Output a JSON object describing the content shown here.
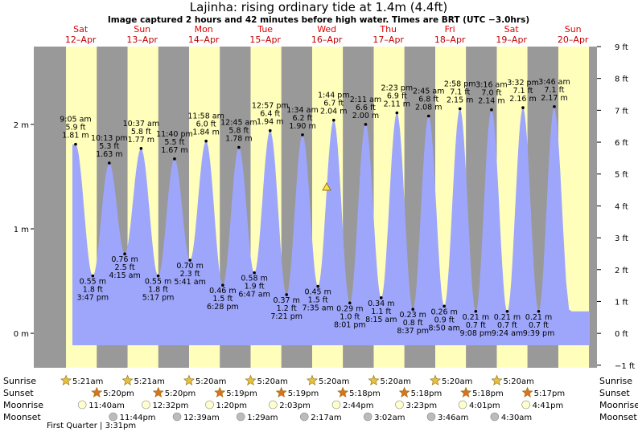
{
  "chart_data": {
    "type": "tide",
    "title": "Lajinha: rising  ordinary tide at 1.4m (4.4ft)",
    "subtitle": "Image captured 2 hours and 42 minutes before high water. Times are BRT (UTC −3.0hrs)",
    "current_m": 1.4,
    "ylim": [
      -0.33,
      2.745
    ],
    "yticks": [
      {
        "value": 0,
        "label": "0 m"
      },
      {
        "value": 1,
        "label": "1 m"
      },
      {
        "value": 2,
        "label": "2 m"
      }
    ],
    "y2lim": [
      -1.08,
      9
    ],
    "y2ticks": [
      {
        "value": -1,
        "label": "−1 ft"
      },
      {
        "value": 0,
        "label": "0 ft"
      },
      {
        "value": 1,
        "label": "1 ft"
      },
      {
        "value": 2,
        "label": "2 ft"
      },
      {
        "value": 3,
        "label": "3 ft"
      },
      {
        "value": 4,
        "label": "4 ft"
      },
      {
        "value": 5,
        "label": "5 ft"
      },
      {
        "value": 6,
        "label": "6 ft"
      },
      {
        "value": 7,
        "label": "7 ft"
      },
      {
        "value": 8,
        "label": "8 ft"
      },
      {
        "value": 9,
        "label": "9 ft"
      }
    ],
    "row_labels": [
      "Sunrise",
      "Sunset",
      "Moonrise",
      "Moonset"
    ],
    "moon_phase": "First Quarter | 3:31pm",
    "days": [
      {
        "name": "Sat",
        "date": "12–Apr",
        "sunrise": "5:21am",
        "sunset": "5:20pm",
        "moonrise": "11:40am",
        "moonset": "11:44pm",
        "tides": [
          {
            "time": "9:05 am",
            "m": 1.81,
            "m_label": "1.81 m",
            "ft": 5.9,
            "ft_label": "5.9 ft"
          },
          {
            "time": "3:47 pm",
            "m": 0.55,
            "m_label": "0.55 m",
            "ft": 1.8,
            "ft_label": "1.8 ft"
          },
          {
            "time": "10:13 pm",
            "m": 1.63,
            "m_label": "1.63 m",
            "ft": 5.3,
            "ft_label": "5.3 ft"
          }
        ]
      },
      {
        "name": "Sun",
        "date": "13–Apr",
        "sunrise": "5:21am",
        "sunset": "5:20pm",
        "moonrise": "12:32pm",
        "moonset": null,
        "tides": [
          {
            "time": "4:15 am",
            "m": 0.76,
            "m_label": "0.76 m",
            "ft": 2.5,
            "ft_label": "2.5 ft"
          },
          {
            "time": "10:37 am",
            "m": 1.77,
            "m_label": "1.77 m",
            "ft": 5.8,
            "ft_label": "5.8 ft"
          },
          {
            "time": "5:17 pm",
            "m": 0.55,
            "m_label": "0.55 m",
            "ft": 1.8,
            "ft_label": "1.8 ft"
          },
          {
            "time": "11:40 pm",
            "m": 1.67,
            "m_label": "1.67 m",
            "ft": 5.5,
            "ft_label": "5.5 ft"
          }
        ]
      },
      {
        "name": "Mon",
        "date": "14–Apr",
        "sunrise": "5:20am",
        "sunset": "5:19pm",
        "moonrise": "1:20pm",
        "moonset": "12:39am",
        "tides": [
          {
            "time": "5:41 am",
            "m": 0.7,
            "m_label": "0.70 m",
            "ft": 2.3,
            "ft_label": "2.3 ft"
          },
          {
            "time": "11:58 am",
            "m": 1.84,
            "m_label": "1.84 m",
            "ft": 6.0,
            "ft_label": "6.0 ft"
          },
          {
            "time": "6:28 pm",
            "m": 0.46,
            "m_label": "0.46 m",
            "ft": 1.5,
            "ft_label": "1.5 ft"
          }
        ]
      },
      {
        "name": "Tue",
        "date": "15–Apr",
        "sunrise": "5:20am",
        "sunset": "5:19pm",
        "moonrise": "2:03pm",
        "moonset": "1:29am",
        "tides": [
          {
            "time": "12:45 am",
            "m": 1.78,
            "m_label": "1.78 m",
            "ft": 5.8,
            "ft_label": "5.8 ft"
          },
          {
            "time": "6:47 am",
            "m": 0.58,
            "m_label": "0.58 m",
            "ft": 1.9,
            "ft_label": "1.9 ft"
          },
          {
            "time": "12:57 pm",
            "m": 1.94,
            "m_label": "1.94 m",
            "ft": 6.4,
            "ft_label": "6.4 ft"
          },
          {
            "time": "7:21 pm",
            "m": 0.37,
            "m_label": "0.37 m",
            "ft": 1.2,
            "ft_label": "1.2 ft"
          }
        ]
      },
      {
        "name": "Wed",
        "date": "16–Apr",
        "sunrise": "5:20am",
        "sunset": "5:18pm",
        "moonrise": "2:44pm",
        "moonset": "2:17am",
        "tides": [
          {
            "time": "1:34 am",
            "m": 1.9,
            "m_label": "1.90 m",
            "ft": 6.2,
            "ft_label": "6.2 ft"
          },
          {
            "time": "7:35 am",
            "m": 0.45,
            "m_label": "0.45 m",
            "ft": 1.5,
            "ft_label": "1.5 ft"
          },
          {
            "time": "1:44 pm",
            "m": 2.04,
            "m_label": "2.04 m",
            "ft": 6.7,
            "ft_label": "6.7 ft"
          },
          {
            "time": "8:01 pm",
            "m": 0.29,
            "m_label": "0.29 m",
            "ft": 1.0,
            "ft_label": "1.0 ft"
          }
        ]
      },
      {
        "name": "Thu",
        "date": "17–Apr",
        "sunrise": "5:20am",
        "sunset": "5:18pm",
        "moonrise": "3:23pm",
        "moonset": "3:02am",
        "tides": [
          {
            "time": "2:11 am",
            "m": 2.0,
            "m_label": "2.00 m",
            "ft": 6.6,
            "ft_label": "6.6 ft"
          },
          {
            "time": "8:15 am",
            "m": 0.34,
            "m_label": "0.34 m",
            "ft": 1.1,
            "ft_label": "1.1 ft"
          },
          {
            "time": "2:23 pm",
            "m": 2.11,
            "m_label": "2.11 m",
            "ft": 6.9,
            "ft_label": "6.9 ft"
          },
          {
            "time": "8:37 pm",
            "m": 0.23,
            "m_label": "0.23 m",
            "ft": 0.8,
            "ft_label": "0.8 ft"
          }
        ]
      },
      {
        "name": "Fri",
        "date": "18–Apr",
        "sunrise": "5:20am",
        "sunset": "5:18pm",
        "moonrise": "4:01pm",
        "moonset": "3:46am",
        "tides": [
          {
            "time": "2:45 am",
            "m": 2.08,
            "m_label": "2.08 m",
            "ft": 6.8,
            "ft_label": "6.8 ft"
          },
          {
            "time": "8:50 am",
            "m": 0.26,
            "m_label": "0.26 m",
            "ft": 0.9,
            "ft_label": "0.9 ft"
          },
          {
            "time": "2:58 pm",
            "m": 2.15,
            "m_label": "2.15 m",
            "ft": 7.1,
            "ft_label": "7.1 ft"
          },
          {
            "time": "9:08 pm",
            "m": 0.21,
            "m_label": "0.21 m",
            "ft": 0.7,
            "ft_label": "0.7 ft"
          }
        ]
      },
      {
        "name": "Sat",
        "date": "19–Apr",
        "sunrise": "5:20am",
        "sunset": "5:17pm",
        "moonrise": "4:41pm",
        "moonset": "4:30am",
        "tides": [
          {
            "time": "3:16 am",
            "m": 2.14,
            "m_label": "2.14 m",
            "ft": 7.0,
            "ft_label": "7.0 ft"
          },
          {
            "time": "9:24 am",
            "m": 0.21,
            "m_label": "0.21 m",
            "ft": 0.7,
            "ft_label": "0.7 ft"
          },
          {
            "time": "3:32 pm",
            "m": 2.16,
            "m_label": "2.16 m",
            "ft": 7.1,
            "ft_label": "7.1 ft"
          },
          {
            "time": "9:39 pm",
            "m": 0.21,
            "m_label": "0.21 m",
            "ft": 0.7,
            "ft_label": "0.7 ft"
          }
        ]
      },
      {
        "name": "Sun",
        "date": "20–Apr",
        "sunrise": null,
        "sunset": null,
        "moonrise": null,
        "moonset": null,
        "tides": [
          {
            "time": "3:46 am",
            "m": 2.17,
            "m_label": "2.17 m",
            "ft": 7.1,
            "ft_label": "7.1 ft"
          }
        ]
      }
    ]
  }
}
